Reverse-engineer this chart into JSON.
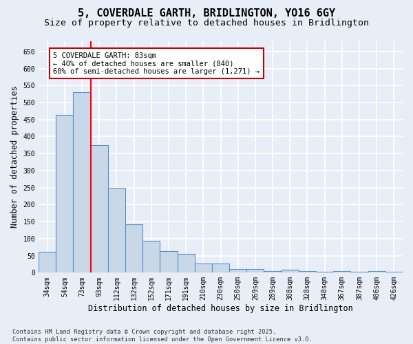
{
  "title": "5, COVERDALE GARTH, BRIDLINGTON, YO16 6GY",
  "subtitle": "Size of property relative to detached houses in Bridlington",
  "xlabel": "Distribution of detached houses by size in Bridlington",
  "ylabel": "Number of detached properties",
  "categories": [
    "34sqm",
    "54sqm",
    "73sqm",
    "93sqm",
    "112sqm",
    "132sqm",
    "152sqm",
    "171sqm",
    "191sqm",
    "210sqm",
    "230sqm",
    "250sqm",
    "269sqm",
    "289sqm",
    "308sqm",
    "328sqm",
    "348sqm",
    "367sqm",
    "387sqm",
    "406sqm",
    "426sqm"
  ],
  "values": [
    62,
    463,
    530,
    375,
    250,
    143,
    93,
    63,
    55,
    26,
    26,
    11,
    11,
    5,
    8,
    4,
    3,
    5,
    3,
    4,
    2
  ],
  "bar_color": "#c8d8e8",
  "bar_edge_color": "#5b8fc9",
  "red_line_x": 2.5,
  "annotation_text": "5 COVERDALE GARTH: 83sqm\n← 40% of detached houses are smaller (840)\n60% of semi-detached houses are larger (1,271) →",
  "annotation_box_color": "#ffffff",
  "annotation_box_edge": "#cc0000",
  "ylim": [
    0,
    680
  ],
  "yticks": [
    0,
    50,
    100,
    150,
    200,
    250,
    300,
    350,
    400,
    450,
    500,
    550,
    600,
    650
  ],
  "footer": "Contains HM Land Registry data © Crown copyright and database right 2025.\nContains public sector information licensed under the Open Government Licence v3.0.",
  "bg_color": "#e8eef8",
  "grid_color": "#ffffff",
  "title_fontsize": 11,
  "subtitle_fontsize": 9.5,
  "tick_fontsize": 7,
  "label_fontsize": 8.5
}
